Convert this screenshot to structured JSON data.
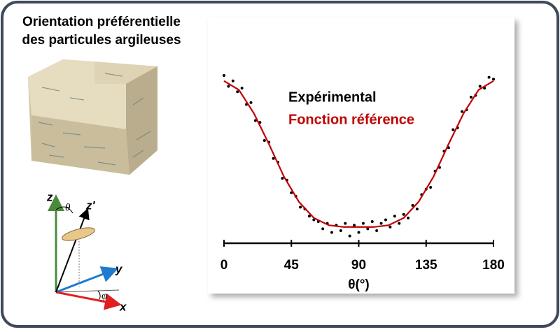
{
  "title_lines": [
    "Orientation préférentielle",
    "des particules argileuses"
  ],
  "axes_diagram": {
    "z": "z",
    "z_prime": "z'",
    "theta": "θ",
    "y": "y",
    "phi": "φ",
    "x": "x"
  },
  "chart_data": {
    "type": "scatter",
    "xlabel": "θ(°)",
    "xlim": [
      0,
      180
    ],
    "xticks": [
      0,
      45,
      90,
      135,
      180
    ],
    "ylim": [
      0,
      1
    ],
    "series": [
      {
        "name": "Expérimental",
        "type": "scatter",
        "color": "#000000",
        "x": [
          0,
          3,
          6,
          9,
          12,
          15,
          18,
          21,
          24,
          27,
          30,
          33,
          36,
          39,
          42,
          45,
          48,
          51,
          54,
          57,
          60,
          63,
          66,
          69,
          72,
          75,
          78,
          81,
          84,
          87,
          90,
          93,
          96,
          99,
          102,
          105,
          108,
          111,
          114,
          117,
          120,
          123,
          126,
          129,
          132,
          135,
          138,
          141,
          144,
          147,
          150,
          153,
          156,
          159,
          162,
          165,
          168,
          171,
          174,
          177,
          180
        ],
        "values": [
          0.93,
          0.87,
          0.9,
          0.84,
          0.86,
          0.77,
          0.78,
          0.68,
          0.67,
          0.57,
          0.56,
          0.47,
          0.45,
          0.36,
          0.35,
          0.28,
          0.26,
          0.2,
          0.19,
          0.15,
          0.13,
          0.12,
          0.08,
          0.11,
          0.06,
          0.1,
          0.07,
          0.11,
          0.04,
          0.1,
          0.06,
          0.11,
          0.08,
          0.12,
          0.07,
          0.11,
          0.13,
          0.09,
          0.15,
          0.11,
          0.16,
          0.14,
          0.21,
          0.19,
          0.27,
          0.3,
          0.31,
          0.4,
          0.42,
          0.51,
          0.53,
          0.63,
          0.64,
          0.73,
          0.74,
          0.81,
          0.82,
          0.87,
          0.86,
          0.92,
          0.91
        ]
      },
      {
        "name": "Fonction référence",
        "type": "line",
        "color": "#c00000",
        "x": [
          0,
          10,
          20,
          30,
          40,
          50,
          60,
          70,
          80,
          90,
          100,
          110,
          120,
          130,
          140,
          150,
          160,
          170,
          180
        ],
        "values": [
          0.9,
          0.85,
          0.72,
          0.55,
          0.37,
          0.23,
          0.14,
          0.1,
          0.09,
          0.09,
          0.09,
          0.1,
          0.14,
          0.23,
          0.37,
          0.55,
          0.72,
          0.85,
          0.9
        ]
      }
    ]
  }
}
